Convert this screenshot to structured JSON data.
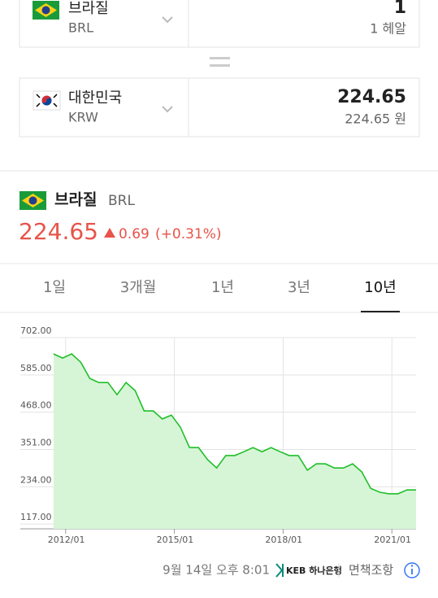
{
  "converter": {
    "from": {
      "name": "브라질",
      "code": "BRL",
      "amount": 1,
      "amount_label": "1 헤알"
    },
    "to": {
      "name": "대한민국",
      "code": "KRW",
      "amount": 224.65,
      "amount_label": "224.65 원"
    }
  },
  "rate": {
    "name": "브라질",
    "code": "BRL",
    "price": 224.65,
    "change": 0.69,
    "change_pct": "(+0.31%)"
  },
  "tabs": [
    "1일",
    "3개월",
    "1년",
    "3년",
    "10년"
  ],
  "selected_tab": 4,
  "chart_data": {
    "type": "area",
    "color": "#1fbf2a",
    "fill": "#d6f5d6",
    "grid": true,
    "x": [
      "2011/09",
      "2011/12",
      "2012/03",
      "2012/06",
      "2012/09",
      "2012/12",
      "2013/03",
      "2013/06",
      "2013/09",
      "2013/12",
      "2014/03",
      "2014/06",
      "2014/09",
      "2014/12",
      "2015/03",
      "2015/06",
      "2015/09",
      "2015/12",
      "2016/03",
      "2016/06",
      "2016/09",
      "2016/12",
      "2017/03",
      "2017/06",
      "2017/09",
      "2017/12",
      "2018/03",
      "2018/06",
      "2018/09",
      "2018/12",
      "2019/03",
      "2019/06",
      "2019/09",
      "2019/12",
      "2020/03",
      "2020/06",
      "2020/09",
      "2020/12",
      "2021/03",
      "2021/06",
      "2021/09"
    ],
    "values": [
      651,
      638,
      651,
      625,
      574,
      561,
      561,
      523,
      561,
      536,
      472,
      472,
      447,
      459,
      421,
      357,
      357,
      319,
      293,
      332,
      332,
      344,
      357,
      344,
      357,
      344,
      332,
      332,
      286,
      306,
      306,
      293,
      293,
      306,
      281,
      229,
      217,
      212,
      212,
      224,
      224
    ],
    "xlim": [
      "2010/10",
      "2021/09"
    ],
    "xticks": [
      "2012/01",
      "2015/01",
      "2018/01",
      "2021/01"
    ],
    "ylim": [
      102,
      702
    ],
    "yticks": [
      {
        "value": 117,
        "label": "117.00"
      },
      {
        "value": 234,
        "label": "234.00"
      },
      {
        "value": 351,
        "label": "351.00"
      },
      {
        "value": 468,
        "label": "468.00"
      },
      {
        "value": 585,
        "label": "585.00"
      },
      {
        "value": 702,
        "label": "702.00"
      }
    ]
  },
  "footer": {
    "time": "9월 14일 오후 8:01",
    "provider": "KEB 하나은행",
    "disclaimer": "면책조항"
  }
}
